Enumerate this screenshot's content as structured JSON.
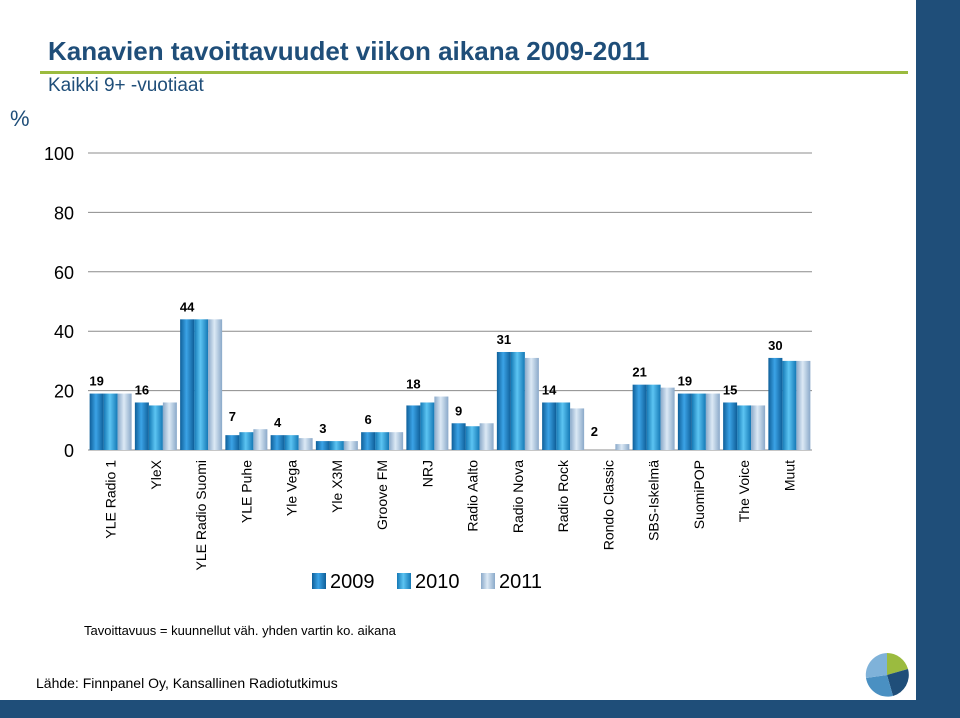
{
  "header": {
    "title": "Kanavien tavoittavuudet viikon aikana 2009-2011",
    "subtitle": "Kaikki 9+ -vuotiaat",
    "unit": "%"
  },
  "footer": {
    "note": "Tavoittavuus = kuunnellut väh. yhden vartin ko. aikana",
    "source": "Lähde: Finnpanel Oy, Kansallinen Radiotutkimus"
  },
  "colors": {
    "bar_2009": "#1b7fc4",
    "bar_2010": "#1d9ad8",
    "bar_2011": "#a9c4de",
    "frame": "#1f4e79",
    "accent": "#9bbb3f"
  },
  "chart_data": {
    "type": "bar",
    "categories": [
      "YLE Radio 1",
      "YleX",
      "YLE Radio Suomi",
      "YLE Puhe",
      "Yle Vega",
      "Yle X3M",
      "Groove FM",
      "NRJ",
      "Radio Aalto",
      "Radio Nova",
      "Radio Rock",
      "Rondo Classic",
      "SBS-Iskelmä",
      "SuomiPOP",
      "The Voice",
      "Muut"
    ],
    "series": [
      {
        "name": "2009",
        "values": [
          19,
          16,
          44,
          5,
          5,
          3,
          6,
          15,
          9,
          33,
          16,
          null,
          22,
          19,
          16,
          31
        ]
      },
      {
        "name": "2010",
        "values": [
          19,
          15,
          44,
          6,
          5,
          3,
          6,
          16,
          8,
          33,
          16,
          null,
          22,
          19,
          15,
          30
        ]
      },
      {
        "name": "2011",
        "values": [
          19,
          16,
          44,
          7,
          4,
          3,
          6,
          18,
          9,
          31,
          14,
          2,
          21,
          19,
          15,
          30
        ]
      }
    ],
    "data_labels": [
      "19",
      "16",
      "44",
      "7",
      "4",
      "3",
      "6",
      "18",
      "9",
      "31",
      "14",
      "2",
      "21",
      "19",
      "15",
      "30"
    ],
    "yticks": [
      "0",
      "20",
      "40",
      "60",
      "80",
      "100"
    ],
    "ylim": [
      0,
      100
    ],
    "grid": true,
    "legend": "bottom-center"
  }
}
